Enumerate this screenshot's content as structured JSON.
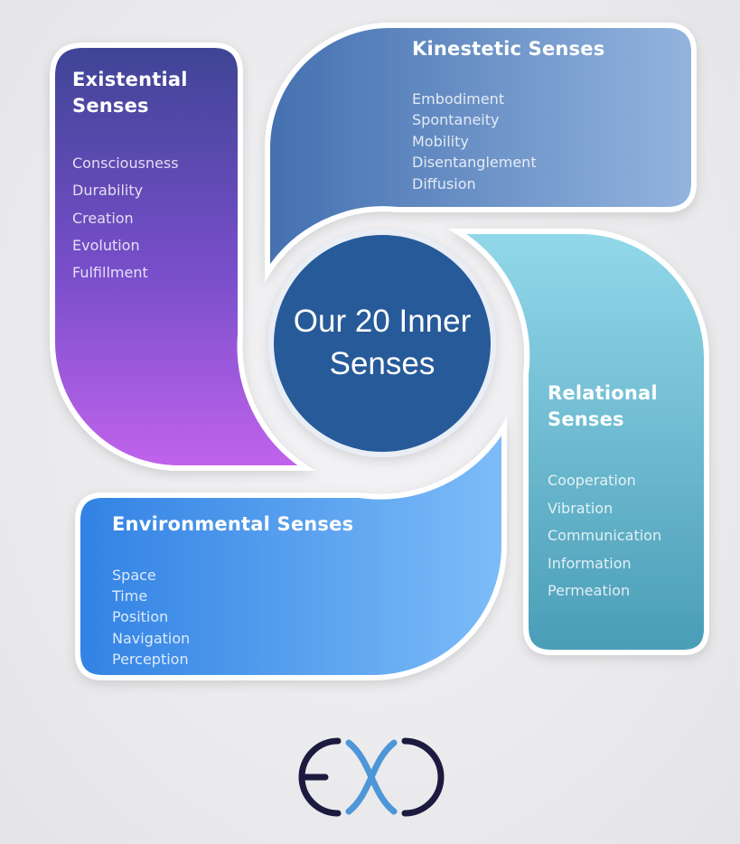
{
  "center": {
    "title": "Our 20 Inner Senses"
  },
  "categories": [
    {
      "key": "existential",
      "heading": "Existential Senses",
      "items": [
        "Consciousness",
        "Durability",
        "Creation",
        "Evolution",
        "Fulfillment"
      ],
      "colors": [
        "#3e4495",
        "#c163ec"
      ]
    },
    {
      "key": "kinestetic",
      "heading": "Kinestetic Senses",
      "items": [
        "Embodiment",
        "Spontaneity",
        "Mobility",
        "Disentanglement",
        "Diffusion"
      ],
      "colors": [
        "#4b76b6",
        "#8fb1dc"
      ]
    },
    {
      "key": "relational",
      "heading": "Relational Senses",
      "items": [
        "Cooperation",
        "Vibration",
        "Communication",
        "Information",
        "Permeation"
      ],
      "colors": [
        "#8fd6e9",
        "#4b9fb9"
      ]
    },
    {
      "key": "environmental",
      "heading": "Environmental Senses",
      "items": [
        "Space",
        "Time",
        "Position",
        "Navigation",
        "Perception"
      ],
      "colors": [
        "#3585e6",
        "#79baf8"
      ]
    }
  ],
  "center_color": "#275a99",
  "logo": {
    "name": "exo-logo",
    "colors": [
      "#1d1a3f",
      "#4d96d8"
    ]
  }
}
